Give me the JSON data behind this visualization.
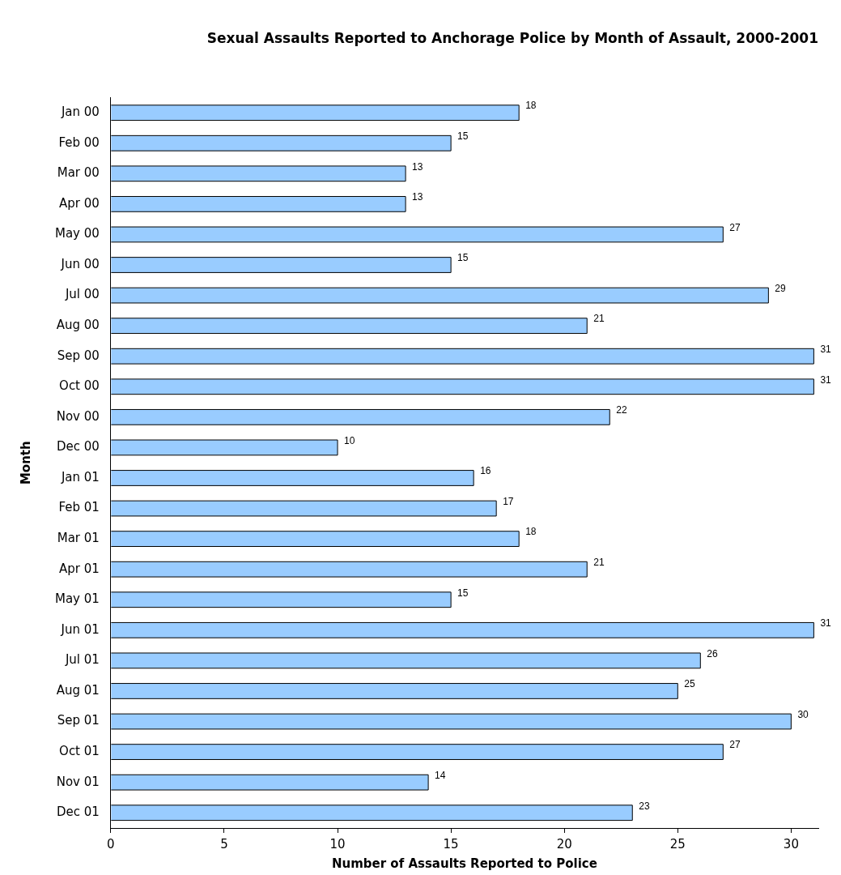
{
  "chart_data": {
    "type": "bar",
    "orientation": "horizontal",
    "title": "Sexual Assaults Reported to Anchorage Police by Month of Assault, 2000-2001",
    "xlabel": "Number of Assaults Reported to Police",
    "ylabel": "Month",
    "categories": [
      "Jan 00",
      "Feb 00",
      "Mar 00",
      "Apr 00",
      "May 00",
      "Jun 00",
      "Jul 00",
      "Aug 00",
      "Sep 00",
      "Oct 00",
      "Nov 00",
      "Dec 00",
      "Jan 01",
      "Feb 01",
      "Mar 01",
      "Apr 01",
      "May 01",
      "Jun 01",
      "Jul 01",
      "Aug 01",
      "Sep 01",
      "Oct 01",
      "Nov 01",
      "Dec 01"
    ],
    "values": [
      18,
      15,
      13,
      13,
      27,
      15,
      29,
      21,
      31,
      31,
      22,
      10,
      16,
      17,
      18,
      21,
      15,
      31,
      26,
      25,
      30,
      27,
      14,
      23
    ],
    "color": "#99ccff",
    "xlim": [
      0,
      31.2
    ],
    "xticks": [
      0,
      5,
      10,
      15,
      20,
      25,
      30
    ],
    "grid": false,
    "legend": false,
    "data_labels": true
  }
}
